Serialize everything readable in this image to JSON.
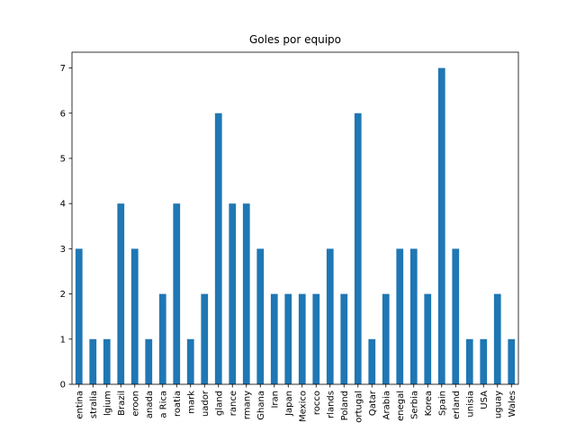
{
  "chart_data": {
    "type": "bar",
    "title": "Goles por equipo",
    "categories": [
      "entina",
      "stralia",
      "lgium",
      "Brazil",
      "eroon",
      "anada",
      "a Rica",
      "roatia",
      "mark",
      "uador",
      "gland",
      "rance",
      "rmany",
      "Ghana",
      "Iran",
      "Japan",
      "Mexico",
      "rocco",
      "rlands",
      "Poland",
      "ortugal",
      "Qatar",
      "Arabia",
      "enegal",
      "Serbia",
      "Korea",
      "Spain",
      "erland",
      "unisia",
      "USA",
      "uguay",
      "Wales"
    ],
    "values": [
      3,
      1,
      1,
      4,
      3,
      1,
      2,
      4,
      1,
      2,
      6,
      4,
      4,
      3,
      2,
      2,
      2,
      2,
      3,
      2,
      6,
      1,
      2,
      3,
      3,
      2,
      7,
      3,
      1,
      1,
      2,
      1
    ],
    "color": "#1f77b4",
    "ylim": [
      0,
      7.35
    ],
    "yticks": [
      0,
      1,
      2,
      3,
      4,
      5,
      6,
      7
    ]
  }
}
